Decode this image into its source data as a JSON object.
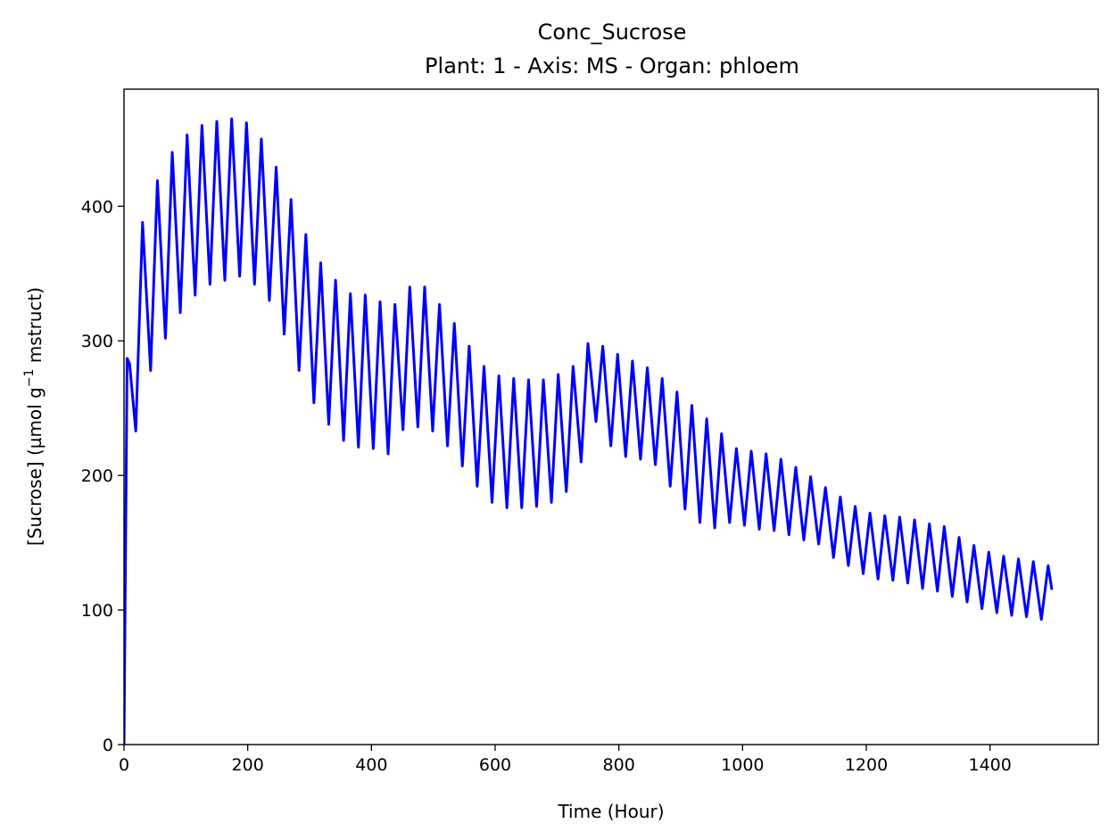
{
  "chart_data": {
    "type": "line",
    "title": "Conc_Sucrose",
    "subtitle": "Plant: 1 - Axis: MS - Organ: phloem",
    "xlabel": "Time (Hour)",
    "ylabel_main": "[Sucrose] (µmol g",
    "ylabel_sup": "−1",
    "ylabel_tail": " mstruct)",
    "xlim": [
      0,
      1575
    ],
    "ylim": [
      0,
      487
    ],
    "xticks": [
      0,
      200,
      400,
      600,
      800,
      1000,
      1200,
      1400
    ],
    "yticks": [
      0,
      100,
      200,
      300,
      400
    ],
    "grid": false,
    "series": [
      {
        "color": "#0000ff",
        "x": [
          0,
          5,
          9,
          19,
          30,
          43,
          54,
          67,
          78,
          91,
          102,
          115,
          126,
          139,
          150,
          163,
          174,
          187,
          198,
          211,
          222,
          235,
          246,
          259,
          270,
          283,
          294,
          307,
          318,
          331,
          342,
          355,
          366,
          379,
          390,
          403,
          414,
          427,
          438,
          451,
          462,
          475,
          486,
          499,
          510,
          523,
          534,
          547,
          558,
          571,
          582,
          595,
          606,
          619,
          630,
          643,
          654,
          667,
          678,
          691,
          702,
          715,
          726,
          739,
          750,
          763,
          774,
          787,
          798,
          811,
          822,
          835,
          846,
          859,
          870,
          883,
          894,
          907,
          918,
          931,
          942,
          955,
          966,
          979,
          990,
          1003,
          1014,
          1027,
          1038,
          1051,
          1062,
          1075,
          1086,
          1099,
          1110,
          1123,
          1134,
          1147,
          1158,
          1171,
          1182,
          1195,
          1206,
          1219,
          1230,
          1243,
          1254,
          1267,
          1278,
          1291,
          1302,
          1315,
          1326,
          1339,
          1350,
          1363,
          1374,
          1387,
          1398,
          1411,
          1422,
          1435,
          1446,
          1459,
          1470,
          1483,
          1494,
          1500
        ],
        "y": [
          0,
          287,
          283,
          233,
          388,
          278,
          419,
          302,
          440,
          321,
          453,
          334,
          460,
          342,
          463,
          345,
          465,
          348,
          462,
          342,
          450,
          330,
          429,
          305,
          405,
          278,
          379,
          254,
          358,
          238,
          345,
          226,
          335,
          221,
          334,
          220,
          329,
          216,
          327,
          234,
          340,
          236,
          340,
          233,
          327,
          222,
          313,
          207,
          296,
          192,
          281,
          180,
          274,
          176,
          272,
          176,
          271,
          177,
          271,
          180,
          275,
          188,
          281,
          210,
          298,
          240,
          296,
          222,
          290,
          214,
          285,
          212,
          280,
          208,
          272,
          192,
          262,
          175,
          252,
          165,
          242,
          161,
          231,
          165,
          220,
          163,
          218,
          160,
          216,
          159,
          212,
          156,
          206,
          152,
          199,
          149,
          191,
          139,
          184,
          133,
          177,
          127,
          172,
          123,
          170,
          122,
          169,
          120,
          167,
          116,
          164,
          114,
          162,
          110,
          154,
          106,
          148,
          101,
          143,
          98,
          140,
          96,
          138,
          95,
          136,
          93,
          133,
          115
        ]
      }
    ]
  }
}
